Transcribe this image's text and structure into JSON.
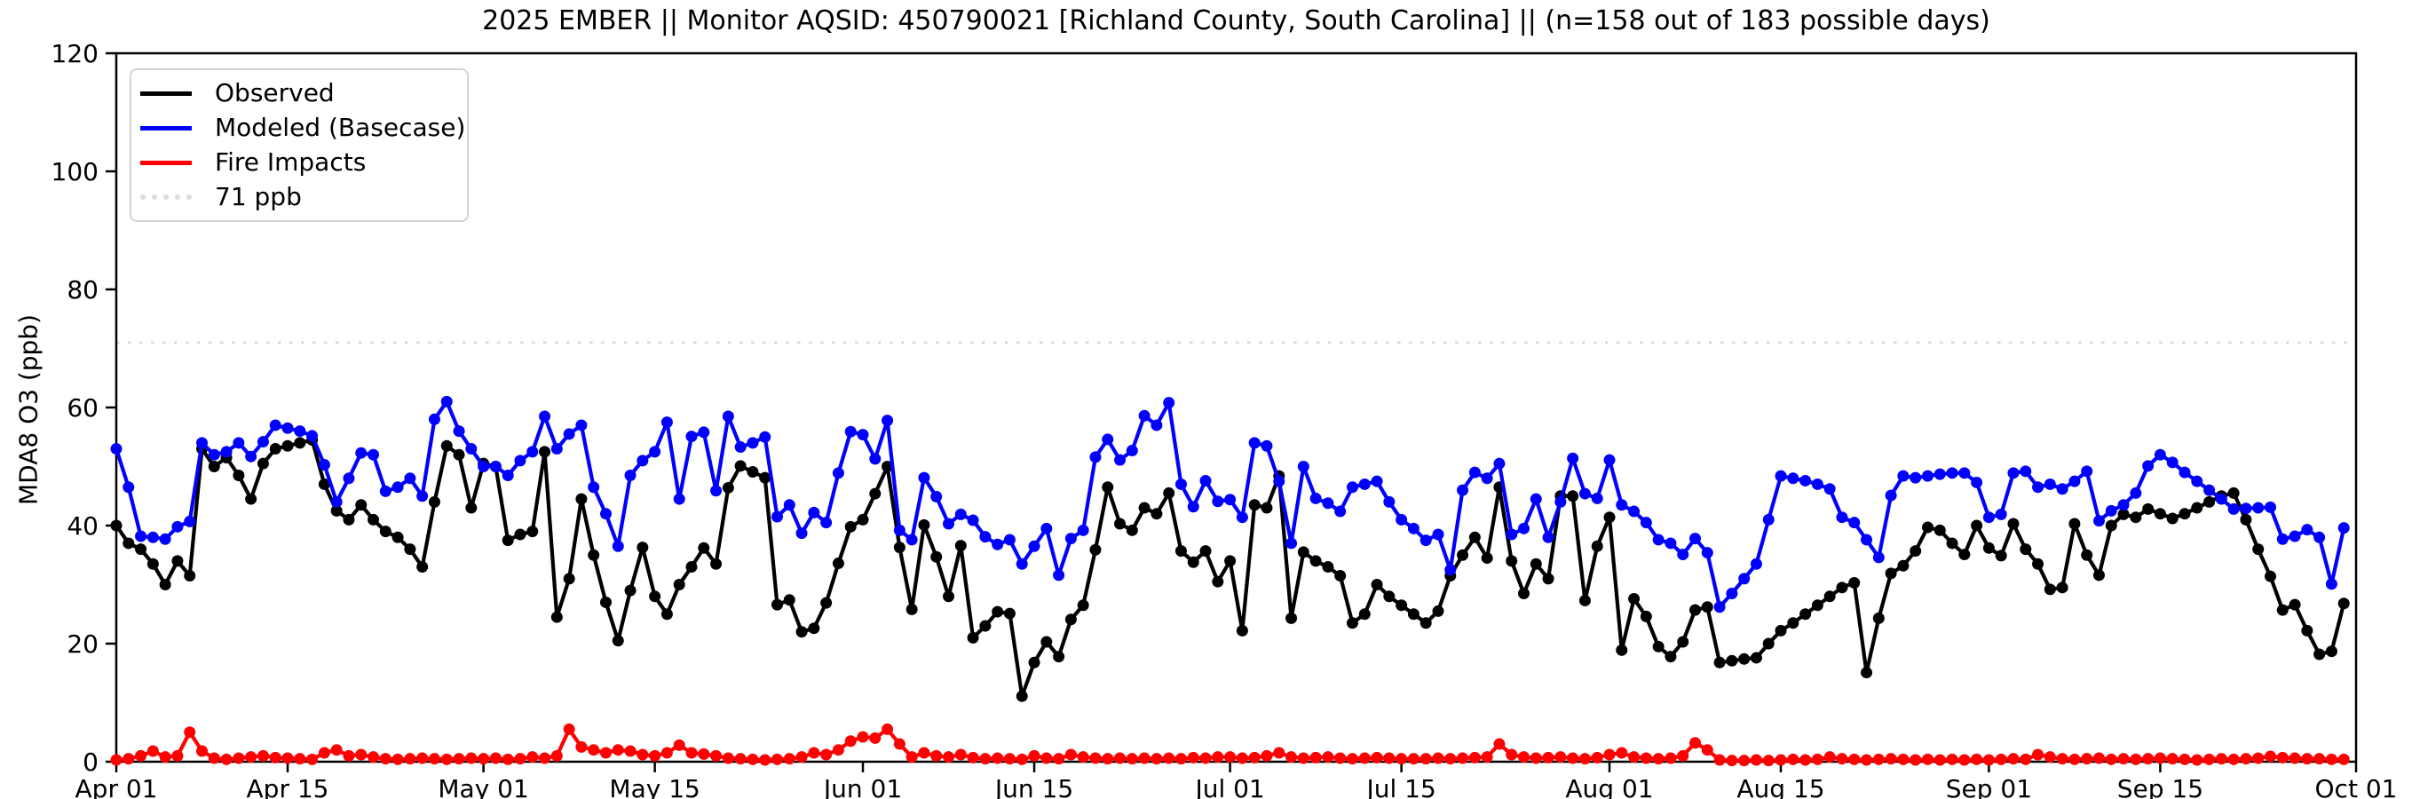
{
  "figure": {
    "background_color": "#ffffff",
    "axes_color": "#000000"
  },
  "chart_data": {
    "type": "line",
    "title": "2025 EMBER || Monitor AQSID: 450790021 [Richland County, South Carolina] || (n=158 out of 183 possible days)",
    "xlabel": "",
    "ylabel": "MDA8 O3 (ppb)",
    "ylim": [
      0,
      120
    ],
    "yticks": [
      0,
      20,
      40,
      60,
      80,
      100,
      120
    ],
    "xlim_days": [
      0,
      183
    ],
    "xticks": [
      {
        "day": 0,
        "label": "Apr 01"
      },
      {
        "day": 14,
        "label": "Apr 15"
      },
      {
        "day": 30,
        "label": "May 01"
      },
      {
        "day": 44,
        "label": "May 15"
      },
      {
        "day": 61,
        "label": "Jun 01"
      },
      {
        "day": 75,
        "label": "Jun 15"
      },
      {
        "day": 91,
        "label": "Jul 01"
      },
      {
        "day": 105,
        "label": "Jul 15"
      },
      {
        "day": 122,
        "label": "Aug 01"
      },
      {
        "day": 136,
        "label": "Aug 15"
      },
      {
        "day": 153,
        "label": "Sep 01"
      },
      {
        "day": 167,
        "label": "Sep 15"
      },
      {
        "day": 183,
        "label": "Oct 01"
      }
    ],
    "grid": false,
    "legend_position": "upper-left",
    "marker": "circle",
    "reference_line": {
      "value": 71,
      "label": "71 ppb",
      "color": "#dcdcdc",
      "style": "dotted"
    },
    "series": [
      {
        "name": "Observed",
        "color": "#000000",
        "values": [
          40,
          37,
          36,
          33.5,
          30,
          34,
          31.5,
          53,
          50,
          51.5,
          48.5,
          44.5,
          50.5,
          53,
          53.5,
          54,
          54.5,
          47,
          42.5,
          41,
          43.5,
          41,
          39,
          38,
          36,
          33,
          44,
          53.5,
          52,
          43,
          50.5,
          50,
          37.5,
          38.5,
          39,
          52.5,
          24.5,
          31,
          44.5,
          35,
          27,
          20.5,
          29,
          36.3,
          28,
          25,
          30,
          33,
          36.2,
          33.5,
          46.4,
          50.1,
          49.1,
          48.1,
          26.6,
          27.4,
          22,
          22.6,
          26.9,
          33.6,
          39.8,
          41,
          45.4,
          50,
          36.3,
          25.8,
          40.1,
          34.7,
          28,
          36.6,
          21,
          23,
          25.4,
          25.1,
          11.1,
          16.8,
          20.3,
          17.8,
          24.1,
          26.5,
          35.9,
          46.5,
          40.3,
          39.2,
          43,
          42,
          45.5,
          35.7,
          33.8,
          35.7,
          30.5,
          34,
          22.2,
          43.5,
          43,
          48.4,
          24.3,
          35.5,
          34,
          33,
          31.5,
          23.5,
          25,
          30,
          28,
          26.5,
          25,
          23.5,
          25.5,
          31.5,
          35,
          38,
          34.5,
          46.5,
          34,
          28.5,
          33.5,
          31,
          45,
          45,
          27.3,
          36.5,
          41.4,
          18.9,
          27.6,
          24.6,
          19.5,
          17.8,
          20.3,
          25.7,
          26.2,
          16.8,
          17.1,
          17.4,
          17.6,
          20,
          22.2,
          23.5,
          25,
          26.5,
          28,
          29.5,
          30.3,
          15.1,
          24.3,
          31.9,
          33.2,
          35.7,
          39.7,
          39.2,
          37,
          35.1,
          40,
          36.2,
          34.9,
          40.3,
          36,
          33.5,
          29.2,
          29.5,
          40.3,
          35,
          31.6,
          40,
          41.9,
          41.4,
          42.8,
          42,
          41.2,
          42,
          43,
          44,
          45,
          45.5,
          41,
          36,
          31.4,
          25.7,
          26.6,
          22.2,
          18.2,
          18.7,
          26.8
        ]
      },
      {
        "name": "Modeled (Basecase)",
        "color": "#0000ff",
        "values": [
          53,
          46.5,
          38.2,
          38,
          37.7,
          39.8,
          40.7,
          54,
          52,
          52.5,
          54,
          51.7,
          54.2,
          57,
          56.5,
          56,
          55.2,
          50.3,
          44,
          48,
          52.3,
          52,
          45.8,
          46.5,
          48,
          45,
          58,
          61,
          56,
          53,
          50,
          50,
          48.5,
          51,
          52.5,
          58.5,
          53,
          55.5,
          57,
          46.5,
          42,
          36.5,
          48.5,
          51,
          52.5,
          57.5,
          44.5,
          55.1,
          55.8,
          45.9,
          58.5,
          53.3,
          54,
          55,
          41.5,
          43.5,
          38.7,
          42.2,
          40.5,
          48.9,
          55.9,
          55.4,
          51.3,
          57.8,
          39.2,
          37.6,
          48.1,
          44.9,
          40.3,
          41.9,
          40.9,
          38.1,
          36.8,
          37.6,
          33.5,
          36.5,
          39.5,
          31.6,
          37.8,
          39.2,
          51.6,
          54.6,
          51.1,
          52.7,
          58.6,
          57,
          60.8,
          47,
          43.2,
          47.6,
          44.1,
          44.4,
          41.4,
          54,
          53.5,
          47.5,
          37,
          50,
          44.6,
          43.8,
          42.4,
          46.5,
          47,
          47.5,
          44,
          41,
          39.5,
          37.5,
          38.5,
          32.5,
          46,
          49,
          48,
          50.5,
          38.5,
          39.5,
          44.5,
          38,
          44,
          51.4,
          45.4,
          44.6,
          51.1,
          43.5,
          42.4,
          40.5,
          37.6,
          37,
          35.1,
          37.8,
          35.4,
          26.2,
          28.5,
          31,
          33.5,
          41,
          48.4,
          48,
          47.6,
          47,
          46.2,
          41.4,
          40.5,
          37.6,
          34.6,
          45.1,
          48.4,
          48.1,
          48.4,
          48.7,
          48.9,
          48.9,
          47.3,
          41.4,
          41.9,
          48.9,
          49.2,
          46.5,
          47,
          46.2,
          47.5,
          49.2,
          40.8,
          42.5,
          43.5,
          45.5,
          50.1,
          52,
          50.7,
          49,
          47.5,
          46,
          44.5,
          42.8,
          42.9,
          43,
          43.1,
          37.7,
          38.2,
          39.3,
          38,
          30.1,
          39.6
        ]
      },
      {
        "name": "Fire Impacts",
        "color": "#ff0000",
        "values": [
          0.3,
          0.5,
          1,
          1.8,
          0.8,
          1,
          5,
          1.8,
          0.6,
          0.4,
          0.6,
          0.8,
          1,
          0.7,
          0.6,
          0.5,
          0.4,
          1.5,
          2,
          1,
          1.2,
          0.8,
          0.5,
          0.4,
          0.5,
          0.6,
          0.5,
          0.4,
          0.5,
          0.6,
          0.5,
          0.6,
          0.4,
          0.5,
          0.8,
          0.6,
          1,
          5.5,
          2.5,
          2,
          1.5,
          2,
          1.8,
          1.2,
          1,
          1.5,
          2.8,
          1.5,
          1.3,
          1,
          0.6,
          0.5,
          0.4,
          0.3,
          0.4,
          0.5,
          0.8,
          1.5,
          1.2,
          2,
          3.5,
          4.2,
          4,
          5.5,
          3,
          0.8,
          1.5,
          1,
          0.8,
          1.2,
          0.7,
          0.5,
          0.6,
          0.5,
          0.4,
          1,
          0.6,
          0.5,
          1.2,
          0.8,
          0.6,
          0.5,
          0.6,
          0.5,
          0.6,
          0.5,
          0.6,
          0.5,
          0.7,
          0.6,
          0.8,
          0.8,
          0.6,
          0.7,
          1,
          1.5,
          0.8,
          0.6,
          0.7,
          0.8,
          0.6,
          0.5,
          0.6,
          0.7,
          0.6,
          0.5,
          0.5,
          0.5,
          0.6,
          0.5,
          0.6,
          0.7,
          0.8,
          3,
          1.2,
          0.8,
          0.6,
          0.7,
          0.8,
          0.6,
          0.5,
          0.7,
          1.2,
          1.5,
          0.8,
          0.6,
          0.5,
          0.6,
          1,
          3.2,
          2,
          0.3,
          0.2,
          0.2,
          0.3,
          0.2,
          0.3,
          0.4,
          0.3,
          0.4,
          0.8,
          0.5,
          0.4,
          0.3,
          0.4,
          0.5,
          0.4,
          0.3,
          0.4,
          0.3,
          0.4,
          0.3,
          0.4,
          0.3,
          0.4,
          0.5,
          0.4,
          1.2,
          0.8,
          0.5,
          0.4,
          0.5,
          0.6,
          0.4,
          0.5,
          0.4,
          0.5,
          0.6,
          0.5,
          0.4,
          0.3,
          0.4,
          0.5,
          0.4,
          0.5,
          0.6,
          0.9,
          0.7,
          0.6,
          0.5,
          0.5,
          0.4,
          0.4
        ]
      }
    ]
  }
}
